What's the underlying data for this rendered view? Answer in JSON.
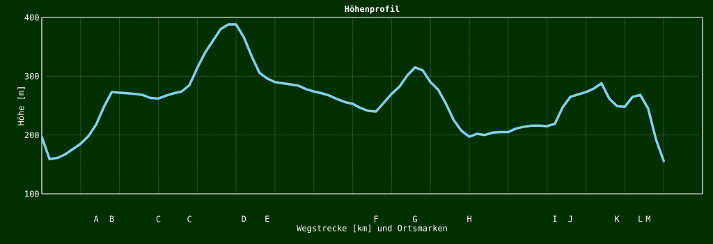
{
  "chart_data": {
    "type": "line",
    "title": "Höhenprofil",
    "xlabel": "Wegstrecke [km] und Ortsmarken",
    "ylabel": "Höhe [m]",
    "categories": [
      null,
      null,
      null,
      null,
      null,
      null,
      null,
      "A",
      null,
      "B",
      null,
      null,
      null,
      null,
      null,
      "C",
      null,
      null,
      null,
      "C",
      null,
      null,
      null,
      null,
      null,
      null,
      "D",
      null,
      null,
      "E",
      null,
      null,
      null,
      null,
      null,
      null,
      null,
      null,
      null,
      null,
      null,
      null,
      null,
      "F",
      null,
      null,
      null,
      null,
      "G",
      null,
      null,
      null,
      null,
      null,
      null,
      "H",
      null,
      null,
      null,
      null,
      null,
      null,
      null,
      null,
      null,
      null,
      "I",
      null,
      "J",
      null,
      null,
      null,
      null,
      null,
      "K",
      null,
      null,
      "L",
      "M",
      null,
      null,
      null,
      null,
      null,
      null,
      null
    ],
    "series": [
      {
        "color": "#87ceeb",
        "values": [
          197,
          159,
          161,
          167,
          176,
          185,
          198,
          218,
          248,
          273,
          272,
          271,
          270,
          268,
          263,
          262,
          267,
          271,
          274,
          285,
          314,
          340,
          360,
          380,
          388,
          388,
          366,
          334,
          306,
          296,
          290,
          288,
          286,
          284,
          278,
          274,
          271,
          267,
          261,
          256,
          253,
          246,
          241,
          240,
          255,
          270,
          282,
          301,
          315,
          310,
          290,
          277,
          253,
          225,
          207,
          197,
          202,
          200,
          204,
          205,
          205,
          211,
          214,
          216,
          216,
          215,
          219,
          247,
          265,
          269,
          273,
          279,
          288,
          262,
          249,
          248,
          265,
          268,
          245,
          193,
          156,
          null,
          null,
          null,
          null,
          null
        ]
      }
    ],
    "ylim": [
      100,
      400
    ],
    "yticks": [
      100,
      200,
      300,
      400
    ],
    "grid": true,
    "line_style": "solid"
  }
}
